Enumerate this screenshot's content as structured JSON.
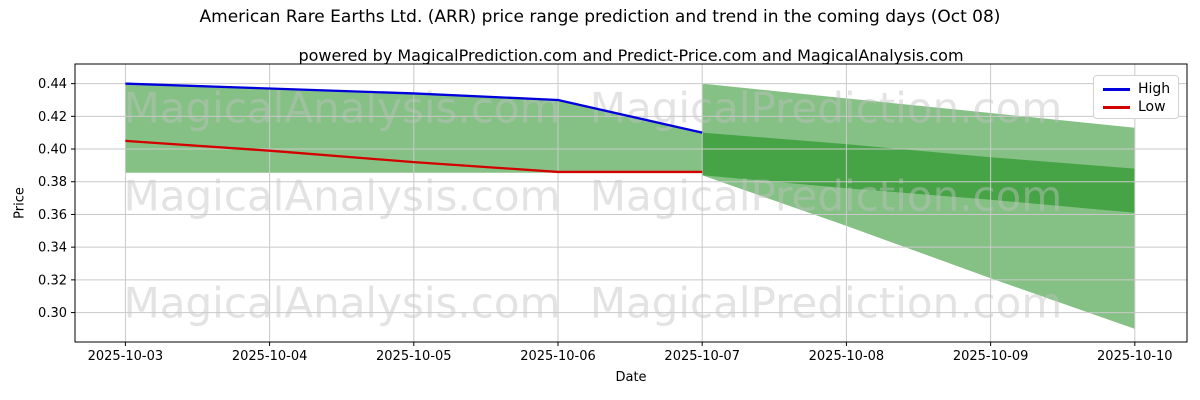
{
  "header": {
    "title": "American Rare Earths Ltd. (ARR) price range prediction and trend in the coming days (Oct 08)",
    "subtitle": "powered by MagicalPrediction.com and Predict-Price.com and MagicalAnalysis.com"
  },
  "watermarks": {
    "left": "MagicalAnalysis.com",
    "right": "MagicalPrediction.com"
  },
  "legend": {
    "items": [
      {
        "label": "High",
        "color": "#0000dd"
      },
      {
        "label": "Low",
        "color": "#d40000"
      }
    ]
  },
  "axes": {
    "x_label": "Date",
    "y_label": "Price"
  },
  "chart_data": {
    "type": "area",
    "title": "American Rare Earths Ltd. (ARR) price range prediction and trend in the coming days (Oct 08)",
    "xlabel": "Date",
    "ylabel": "Price",
    "x": [
      "2025-10-03",
      "2025-10-04",
      "2025-10-05",
      "2025-10-06",
      "2025-10-07",
      "2025-10-08",
      "2025-10-09",
      "2025-10-10"
    ],
    "ylim": [
      0.282,
      0.452
    ],
    "yticks": [
      0.3,
      0.32,
      0.34,
      0.36,
      0.38,
      0.4,
      0.42,
      0.44
    ],
    "grid": true,
    "legend_position": "upper right",
    "series": [
      {
        "name": "High",
        "color": "#0000dd",
        "x_index": [
          0,
          1,
          2,
          3,
          4
        ],
        "values": [
          0.44,
          0.437,
          0.434,
          0.43,
          0.41
        ]
      },
      {
        "name": "Low",
        "color": "#d40000",
        "x_index": [
          0,
          1,
          2,
          3,
          4
        ],
        "values": [
          0.405,
          0.399,
          0.392,
          0.386,
          0.386
        ]
      }
    ],
    "bands": [
      {
        "name": "history-range",
        "color": "#85c185",
        "x_index": [
          0,
          1,
          2,
          3,
          4
        ],
        "top": [
          0.44,
          0.437,
          0.434,
          0.43,
          0.41
        ],
        "bottom": [
          0.3855,
          0.3855,
          0.3855,
          0.3855,
          0.3855
        ]
      },
      {
        "name": "forecast-wide",
        "color": "#85c185",
        "x_index": [
          4,
          5,
          6,
          7
        ],
        "top": [
          0.44,
          0.431,
          0.422,
          0.413
        ],
        "bottom": [
          0.384,
          0.353,
          0.321,
          0.29
        ]
      },
      {
        "name": "forecast-likely",
        "color": "#46a446",
        "x_index": [
          4,
          5,
          6,
          7
        ],
        "top": [
          0.41,
          0.403,
          0.395,
          0.388
        ],
        "bottom": [
          0.384,
          0.376,
          0.369,
          0.361
        ]
      }
    ]
  }
}
